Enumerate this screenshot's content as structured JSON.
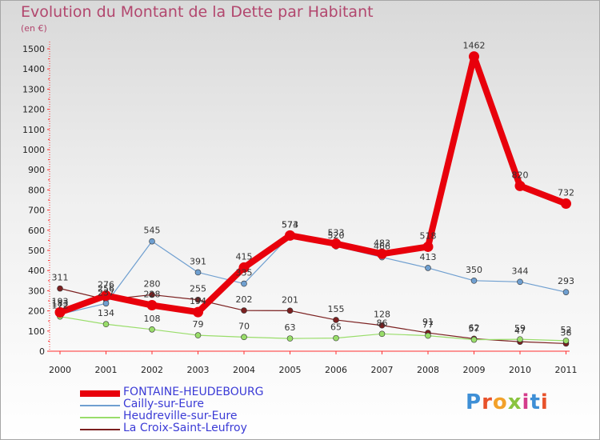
{
  "header": {
    "title": "Evolution du Montant de la Dette par Habitant",
    "unit": "(en €)"
  },
  "logo": {
    "text": "Proxiti",
    "colors": [
      "#3e8fd6",
      "#e8522b",
      "#f2a12a",
      "#8ac43f",
      "#d43c8c",
      "#3e8fd6",
      "#e8522b"
    ]
  },
  "chart_data": {
    "type": "line",
    "title": "Evolution du Montant de la Dette par Habitant",
    "ylabel": "(en €)",
    "xlabel": "",
    "categories": [
      "2000",
      "2001",
      "2002",
      "2003",
      "2004",
      "2005",
      "2006",
      "2007",
      "2008",
      "2009",
      "2010",
      "2011"
    ],
    "ylim": [
      0,
      1500
    ],
    "yticks": [
      0,
      100,
      200,
      300,
      400,
      500,
      600,
      700,
      800,
      900,
      1000,
      1100,
      1200,
      1300,
      1400,
      1500
    ],
    "grid": false,
    "legend_position": "bottom-left",
    "series": [
      {
        "name": "FONTAINE-HEUDEBOURG",
        "color": "#e8000b",
        "values": [
          193,
          276,
          228,
          194,
          415,
          574,
          533,
          483,
          518,
          1462,
          820,
          732
        ]
      },
      {
        "name": "Cailly-sur-Eure",
        "color": "#6f9fd0",
        "values": [
          183,
          237,
          545,
          391,
          335,
          573,
          520,
          466,
          413,
          350,
          344,
          293
        ]
      },
      {
        "name": "Heudreville-sur-Eure",
        "color": "#99dd6a",
        "values": [
          172,
          134,
          108,
          79,
          70,
          63,
          65,
          86,
          77,
          57,
          59,
          52
        ]
      },
      {
        "name": "La Croix-Saint-Leufroy",
        "color": "#7b2020",
        "values": [
          311,
          256,
          280,
          255,
          202,
          201,
          155,
          128,
          91,
          62,
          47,
          38
        ]
      }
    ]
  }
}
